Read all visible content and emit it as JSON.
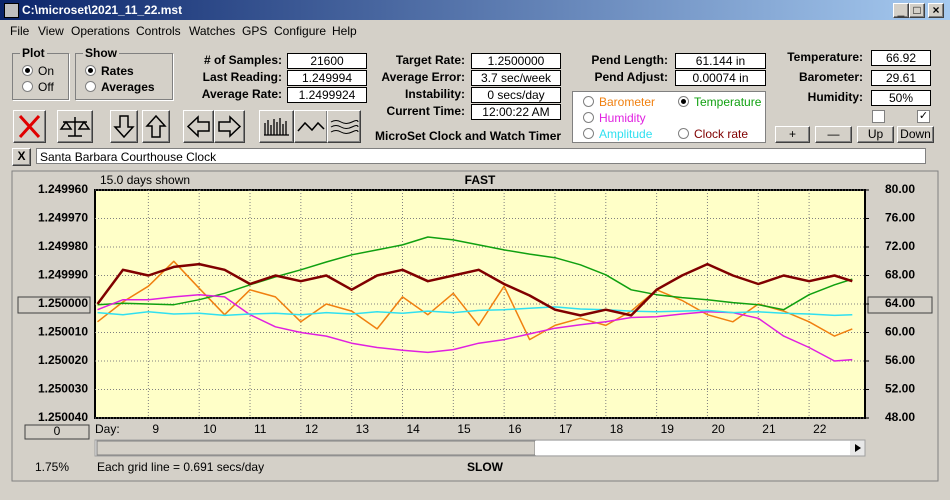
{
  "window": {
    "title": "C:\\microset\\2021_11_22.mst"
  },
  "menu": [
    "File",
    "View",
    "Operations",
    "Controls",
    "Watches",
    "GPS",
    "Configure",
    "Help"
  ],
  "plot_group": {
    "title": "Plot",
    "options": [
      "On",
      "Off"
    ]
  },
  "show_group": {
    "title": "Show",
    "options": [
      "Rates",
      "Averages"
    ]
  },
  "stats": [
    {
      "label": "# of Samples:",
      "value": "21600"
    },
    {
      "label": "Last Reading:",
      "value": "1.249994"
    },
    {
      "label": "Average Rate:",
      "value": "1.2499924"
    }
  ],
  "targets": [
    {
      "label": "Target Rate:",
      "value": "1.2500000"
    },
    {
      "label": "Average Error:",
      "value": "3.7 sec/week"
    },
    {
      "label": "Instability:",
      "value": "0 secs/day"
    },
    {
      "label": "Current Time:",
      "value": "12:00:22 AM"
    }
  ],
  "caption": "MicroSet Clock and Watch Timer",
  "pend": [
    {
      "label": "Pend Length:",
      "value": "61.144 in"
    },
    {
      "label": "Pend Adjust:",
      "value": "0.00074 in"
    }
  ],
  "environment": [
    {
      "label": "Temperature:",
      "value": "66.92"
    },
    {
      "label": "Barometer:",
      "value": "29.61"
    },
    {
      "label": "Humidity:",
      "value": "50%"
    }
  ],
  "scale_buttons": [
    "+",
    "—",
    "Up",
    "Down"
  ],
  "watch": {
    "close": "X",
    "name": "Santa Barbara Courthouse Clock"
  },
  "footer": {
    "percent": "1.75%",
    "scroll_button": "0"
  },
  "chart_data": {
    "type": "line",
    "days_shown": "15.0 days shown",
    "top_label": "FAST",
    "bottom_label": "SLOW",
    "x_label": "Day:",
    "grid_note": "Each grid line = 0.691 secs/day",
    "x": [
      8,
      8.5,
      9,
      9.5,
      10,
      10.5,
      11,
      11.5,
      12,
      12.5,
      13,
      13.5,
      14,
      14.5,
      15,
      15.5,
      16,
      16.5,
      17,
      17.5,
      18,
      18.5,
      19,
      19.5,
      20,
      20.5,
      21,
      21.5,
      22,
      22.5,
      22.85
    ],
    "xlim": [
      7.95,
      23.1
    ],
    "xticks": [
      9,
      10,
      11,
      12,
      13,
      14,
      15,
      16,
      17,
      18,
      19,
      20,
      21,
      22
    ],
    "ylim": [
      1.25004,
      1.24996
    ],
    "yticks": [
      {
        "value": 1.24996,
        "label": "1.249960"
      },
      {
        "value": 1.24997,
        "label": "1.249970"
      },
      {
        "value": 1.24998,
        "label": "1.249980"
      },
      {
        "value": 1.24999,
        "label": "1.249990"
      },
      {
        "value": 1.25,
        "label": "1.250000"
      },
      {
        "value": 1.25001,
        "label": "1.250010"
      },
      {
        "value": 1.25002,
        "label": "1.250020"
      },
      {
        "value": 1.25003,
        "label": "1.250030"
      },
      {
        "value": 1.25004,
        "label": "1.250040"
      }
    ],
    "y2lim": [
      48,
      80
    ],
    "y2ticks": [
      {
        "value": 80,
        "label": "80.00"
      },
      {
        "value": 76,
        "label": "76.00"
      },
      {
        "value": 72,
        "label": "72.00"
      },
      {
        "value": 68,
        "label": "68.00"
      },
      {
        "value": 64,
        "label": "64.00"
      },
      {
        "value": 60,
        "label": "60.00"
      },
      {
        "value": 56,
        "label": "56.00"
      },
      {
        "value": 52,
        "label": "52.00"
      },
      {
        "value": 48,
        "label": "48.00"
      }
    ],
    "grid": true,
    "series": [
      {
        "name": "Barometer",
        "color": "#f08010",
        "axis": "y2",
        "values": [
          61.5,
          64.3,
          66.5,
          70.0,
          66.2,
          62.5,
          66.0,
          65.0,
          61.5,
          64.0,
          63.0,
          60.5,
          65.0,
          62.5,
          65.5,
          61.0,
          66.5,
          59.0,
          61.0,
          62.0,
          61.0,
          63.0,
          66.0,
          64.5,
          62.5,
          61.5,
          64.0,
          63.0,
          61.5,
          59.5,
          60.5
        ]
      },
      {
        "name": "Temperature",
        "color": "#10a010",
        "axis": "y2",
        "selected": true,
        "values": [
          63.9,
          64.1,
          64.0,
          63.9,
          64.6,
          65.5,
          66.7,
          67.8,
          68.8,
          69.9,
          70.9,
          71.6,
          72.3,
          73.4,
          73.0,
          72.3,
          71.6,
          71.0,
          70.5,
          69.5,
          68.1,
          66.0,
          65.3,
          64.9,
          64.6,
          64.2,
          63.9,
          63.2,
          65.3,
          66.7,
          67.5
        ]
      },
      {
        "name": "Humidity",
        "color": "#e020e0",
        "axis": "y2",
        "values": [
          63.2,
          64.6,
          64.6,
          65.0,
          65.3,
          65.0,
          62.5,
          60.8,
          60.0,
          59.5,
          58.5,
          57.9,
          57.5,
          57.2,
          57.6,
          58.5,
          59.0,
          59.8,
          60.6,
          61.1,
          61.5,
          62.1,
          62.2,
          62.6,
          62.9,
          62.8,
          62.0,
          59.5,
          57.9,
          56.0,
          56.2
        ]
      },
      {
        "name": "Amplitude",
        "color": "#30e0f0",
        "axis": "y2",
        "values": [
          62.8,
          62.5,
          62.9,
          62.6,
          62.7,
          62.4,
          62.6,
          62.7,
          62.5,
          62.8,
          62.6,
          62.9,
          62.7,
          63.0,
          62.8,
          63.1,
          63.2,
          63.4,
          63.6,
          63.3,
          63.2,
          63.0,
          62.9,
          63.0,
          63.1,
          62.8,
          62.9,
          62.7,
          62.6,
          62.4,
          62.5
        ]
      },
      {
        "name": "Clock rate",
        "color": "#800000",
        "values": [
          1.25,
          1.249988,
          1.24999,
          1.249987,
          1.249986,
          1.249988,
          1.249993,
          1.24999,
          1.249992,
          1.24999,
          1.249995,
          1.24999,
          1.249988,
          1.249992,
          1.24999,
          1.249988,
          1.249993,
          1.249997,
          1.250002,
          1.250004,
          1.250002,
          1.250004,
          1.249995,
          1.24999,
          1.249986,
          1.24999,
          1.249993,
          1.24999,
          1.249992,
          1.24999,
          1.249992
        ]
      }
    ]
  }
}
